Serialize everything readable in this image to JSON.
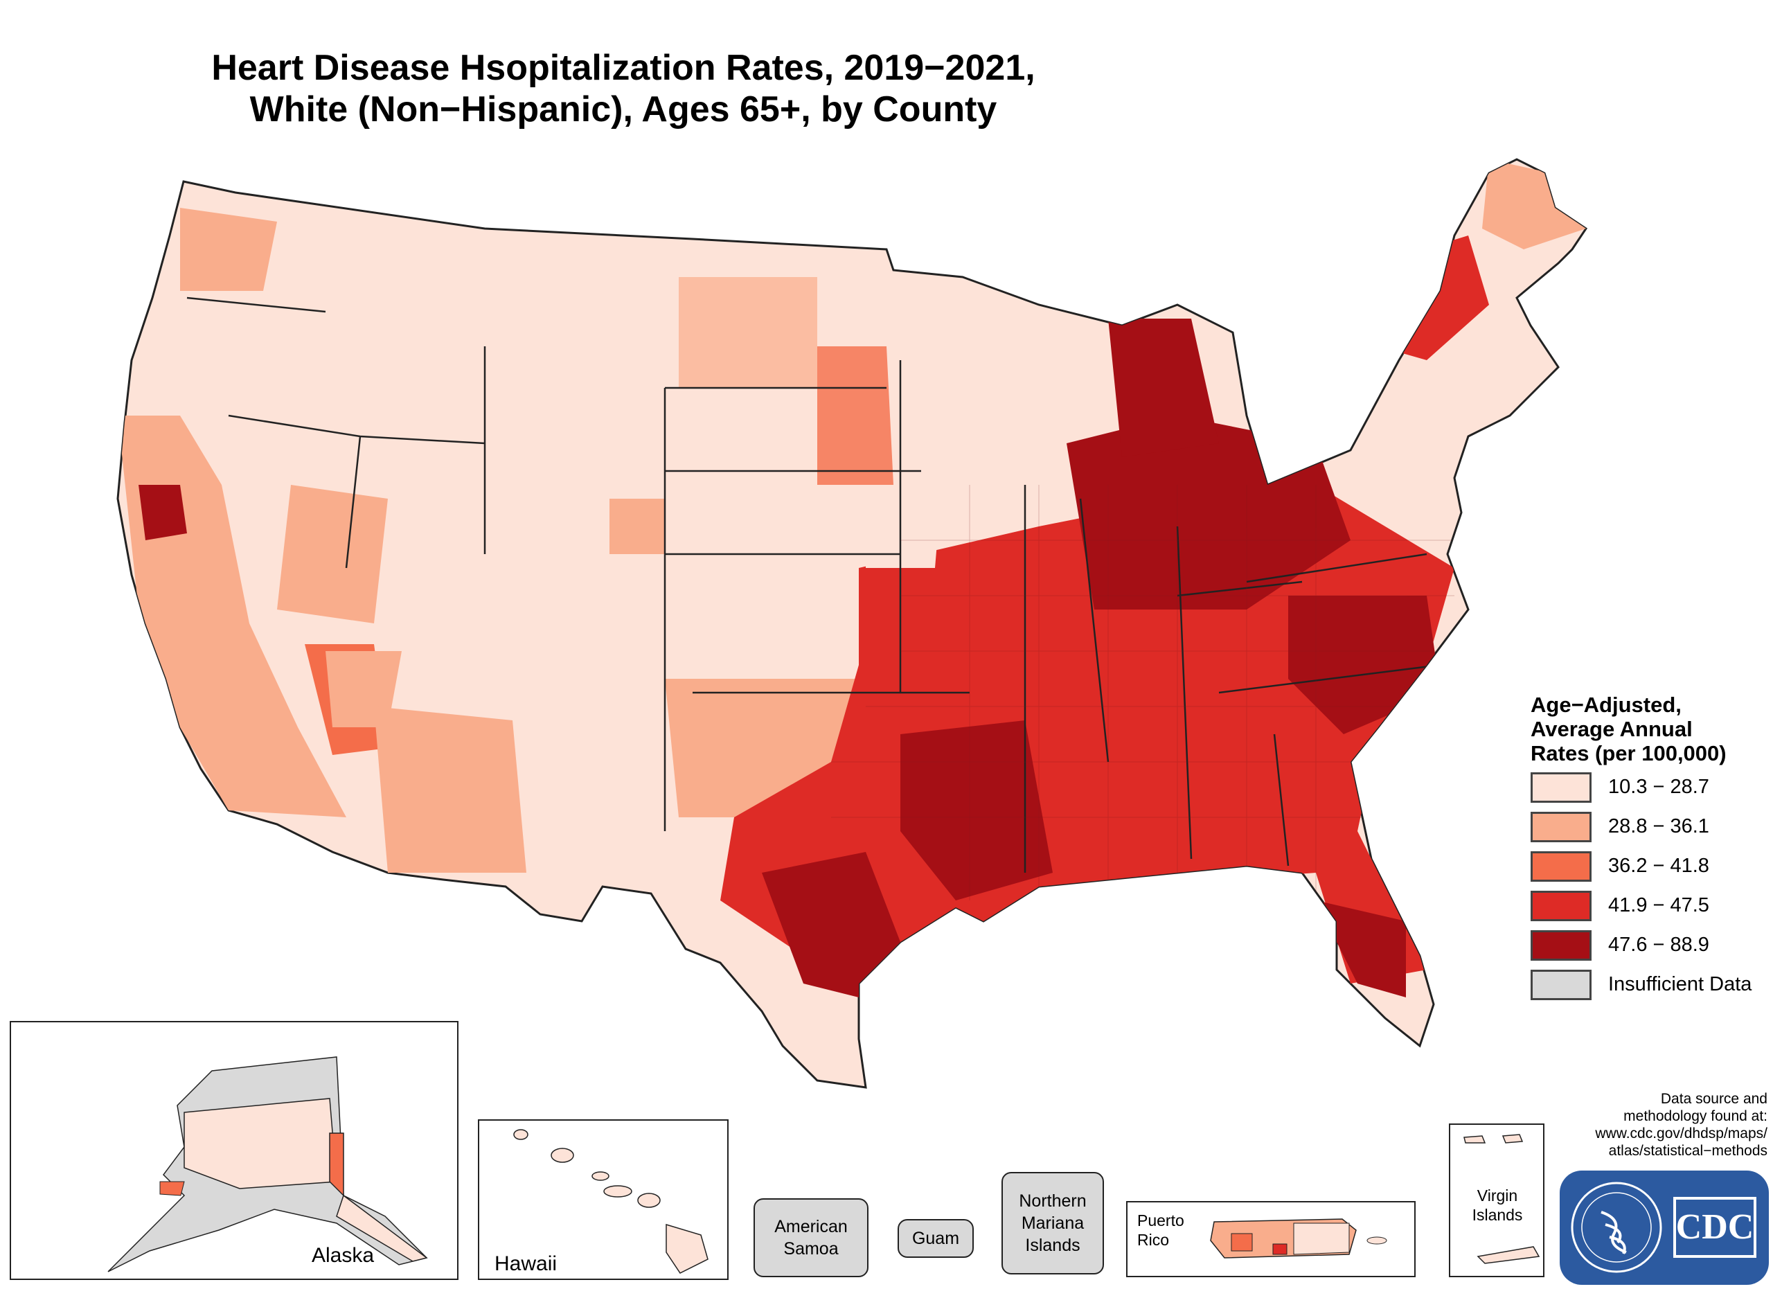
{
  "title": {
    "line1": "Heart Disease Hsopitalization Rates, 2019−2021,",
    "line2": "White (Non−Hispanic), Ages 65+, by County"
  },
  "legend": {
    "title_lines": [
      "Age−Adjusted,",
      "Average Annual",
      "Rates (per 100,000)"
    ],
    "items": [
      {
        "label": "10.3 − 28.7",
        "color": "#fde3d8"
      },
      {
        "label": "28.8 − 36.1",
        "color": "#f9ad8c"
      },
      {
        "label": "36.2 − 41.8",
        "color": "#f46d4a"
      },
      {
        "label": "41.9 − 47.5",
        "color": "#de2b26"
      },
      {
        "label": "47.6 − 88.9",
        "color": "#a50f15"
      },
      {
        "label": "Insufficient Data",
        "color": "#d9d9d9"
      }
    ]
  },
  "insets": {
    "alaska": "Alaska",
    "hawaii": "Hawaii",
    "puerto_rico": "Puerto Rico",
    "virgin_islands": "Virgin Islands"
  },
  "territories": {
    "american_samoa": "American Samoa",
    "guam": "Guam",
    "northern_mariana": "Northern Mariana Islands"
  },
  "source": {
    "lines": [
      "Data source and",
      "methodology found at:",
      "www.cdc.gov/dhdsp/maps/",
      "atlas/statistical−methods"
    ]
  },
  "logo": {
    "text": "CDC"
  }
}
